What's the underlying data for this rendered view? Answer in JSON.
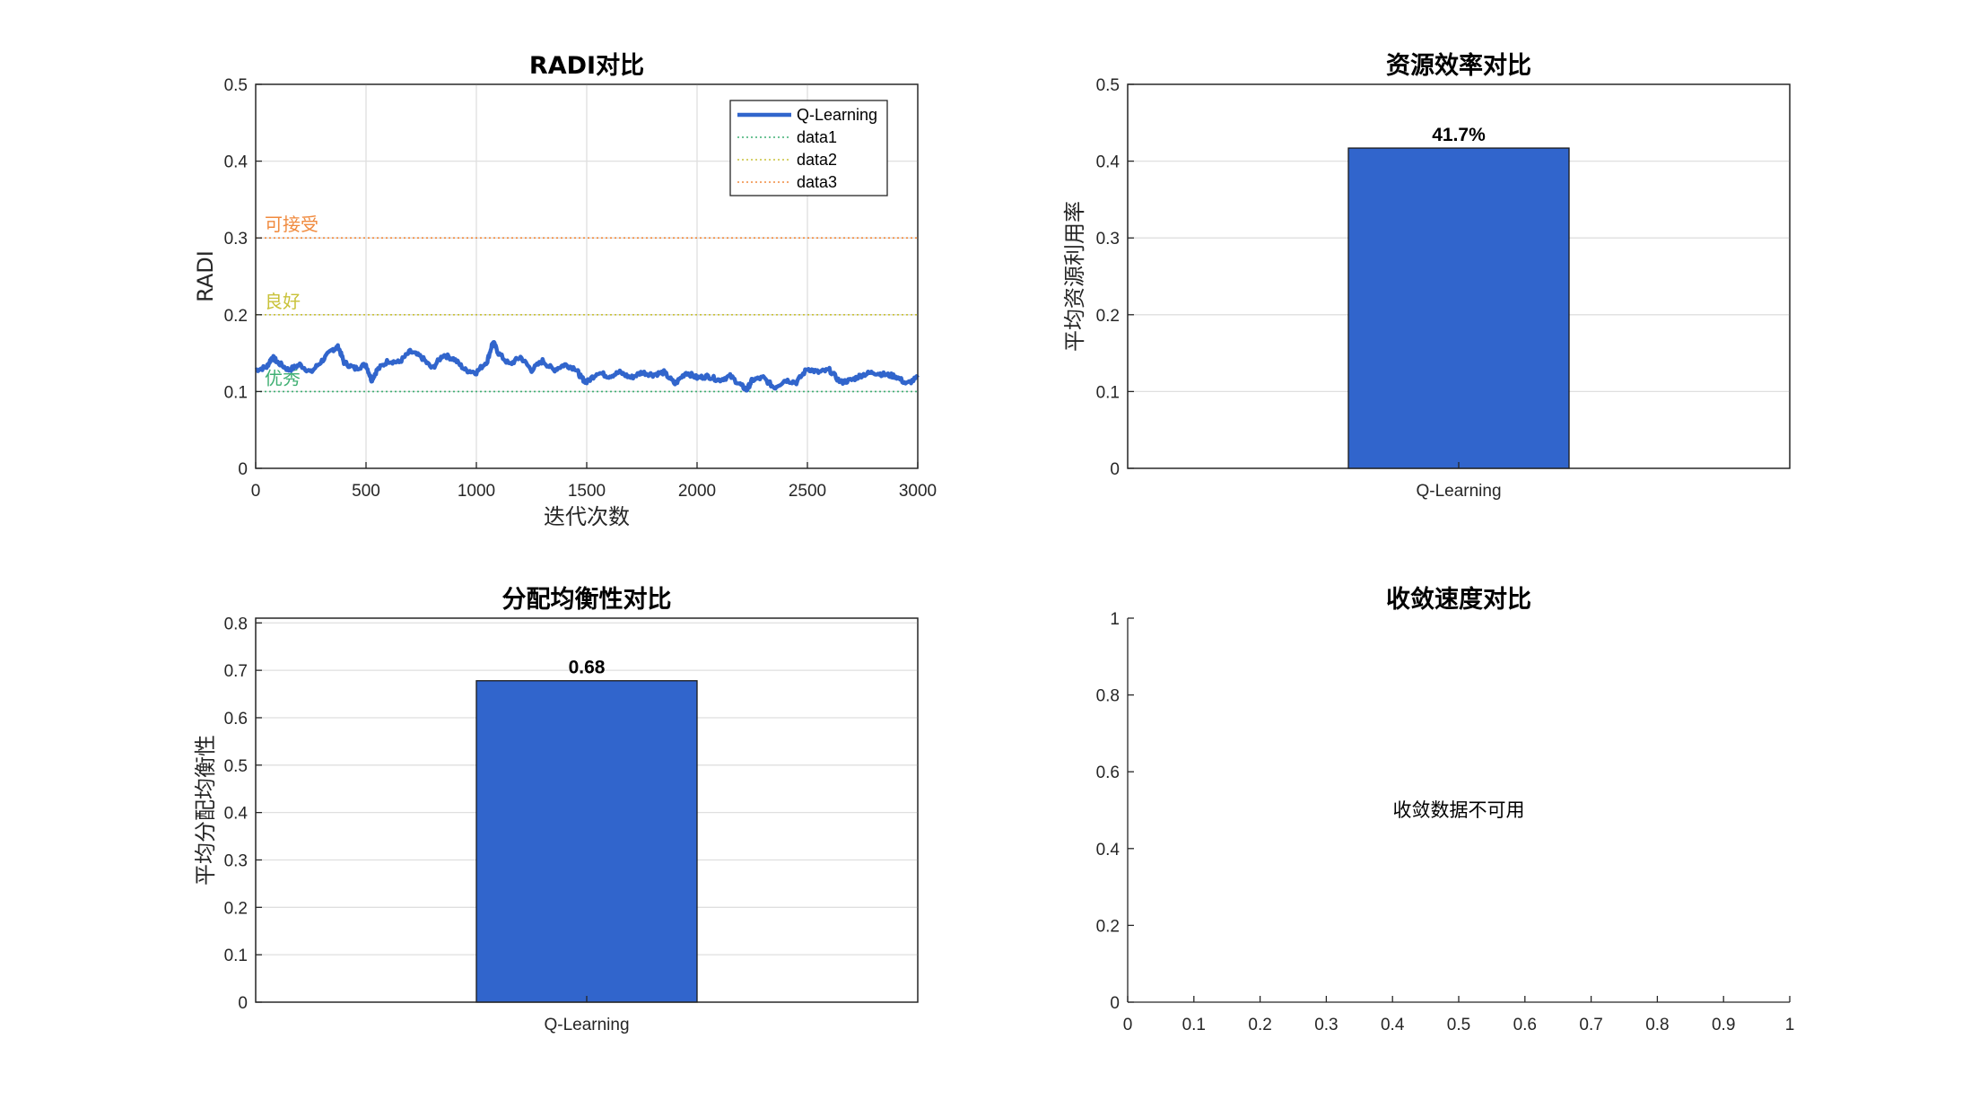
{
  "chart_data": [
    {
      "type": "line",
      "title": "RADI对比",
      "xlabel": "迭代次数",
      "ylabel": "RADI",
      "xlim": [
        0,
        3000
      ],
      "ylim": [
        0,
        0.5
      ],
      "xticks": [
        0,
        500,
        1000,
        1500,
        2000,
        2500,
        3000
      ],
      "yticks": [
        0,
        0.1,
        0.2,
        0.3,
        0.4,
        0.5
      ],
      "xtick_labels": [
        "0",
        "500",
        "1000",
        "1500",
        "2000",
        "2500",
        "3000"
      ],
      "ytick_labels": [
        "0",
        "0.1",
        "0.2",
        "0.3",
        "0.4",
        "0.5"
      ],
      "grid": true,
      "legend_position": "top-right",
      "series": [
        {
          "name": "Q-Learning",
          "color": "#3165CC",
          "style": "solid",
          "x": [
            0,
            50,
            75,
            100,
            150,
            200,
            250,
            300,
            350,
            375,
            400,
            450,
            500,
            525,
            550,
            600,
            650,
            700,
            750,
            800,
            850,
            900,
            950,
            1000,
            1050,
            1075,
            1100,
            1150,
            1200,
            1250,
            1300,
            1350,
            1400,
            1450,
            1475,
            1500,
            1550,
            1600,
            1650,
            1700,
            1750,
            1800,
            1850,
            1900,
            1950,
            2000,
            2050,
            2100,
            2150,
            2200,
            2225,
            2250,
            2300,
            2350,
            2400,
            2450,
            2500,
            2550,
            2600,
            2650,
            2700,
            2750,
            2800,
            2850,
            2900,
            2950,
            3000
          ],
          "values": [
            0.128,
            0.132,
            0.145,
            0.138,
            0.128,
            0.135,
            0.125,
            0.14,
            0.155,
            0.158,
            0.138,
            0.13,
            0.135,
            0.115,
            0.128,
            0.14,
            0.138,
            0.152,
            0.145,
            0.13,
            0.148,
            0.142,
            0.128,
            0.125,
            0.14,
            0.165,
            0.15,
            0.135,
            0.145,
            0.128,
            0.14,
            0.128,
            0.135,
            0.13,
            0.118,
            0.112,
            0.125,
            0.12,
            0.125,
            0.118,
            0.125,
            0.122,
            0.125,
            0.11,
            0.125,
            0.118,
            0.12,
            0.115,
            0.12,
            0.108,
            0.102,
            0.115,
            0.118,
            0.105,
            0.115,
            0.112,
            0.13,
            0.125,
            0.128,
            0.112,
            0.115,
            0.122,
            0.125,
            0.122,
            0.12,
            0.11,
            0.118
          ]
        },
        {
          "name": "data1",
          "color": "#3FAF73",
          "style": "dotted",
          "x": [
            0,
            3000
          ],
          "values": [
            0.1,
            0.1
          ]
        },
        {
          "name": "data2",
          "color": "#C9C23A",
          "style": "dotted",
          "x": [
            0,
            3000
          ],
          "values": [
            0.2,
            0.2
          ]
        },
        {
          "name": "data3",
          "color": "#F08A3E",
          "style": "dotted",
          "x": [
            0,
            3000
          ],
          "values": [
            0.3,
            0.3
          ]
        }
      ],
      "annotations": [
        {
          "text": "可接受",
          "y": 0.3,
          "color": "#F08A3E"
        },
        {
          "text": "良好",
          "y": 0.2,
          "color": "#C9C23A"
        },
        {
          "text": "优秀",
          "y": 0.1,
          "color": "#3FAF73"
        }
      ]
    },
    {
      "type": "bar",
      "title": "资源效率对比",
      "xlabel": "",
      "ylabel": "平均资源利用率",
      "ylim": [
        0,
        0.5
      ],
      "yticks": [
        0,
        0.1,
        0.2,
        0.3,
        0.4,
        0.5
      ],
      "ytick_labels": [
        "0",
        "0.1",
        "0.2",
        "0.3",
        "0.4",
        "0.5"
      ],
      "categories": [
        "Q-Learning"
      ],
      "values": [
        0.417
      ],
      "data_labels": [
        "41.7%"
      ],
      "color": "#3165CC",
      "grid": true
    },
    {
      "type": "bar",
      "title": "分配均衡性对比",
      "xlabel": "",
      "ylabel": "平均分配均衡性",
      "ylim": [
        0,
        0.81
      ],
      "yticks": [
        0,
        0.1,
        0.2,
        0.3,
        0.4,
        0.5,
        0.6,
        0.7,
        0.8
      ],
      "ytick_labels": [
        "0",
        "0.1",
        "0.2",
        "0.3",
        "0.4",
        "0.5",
        "0.6",
        "0.7",
        "0.8"
      ],
      "categories": [
        "Q-Learning"
      ],
      "values": [
        0.678
      ],
      "data_labels": [
        "0.68"
      ],
      "color": "#3165CC",
      "grid": true
    },
    {
      "type": "line",
      "title": "收敛速度对比",
      "xlabel": "",
      "ylabel": "",
      "xlim": [
        0,
        1
      ],
      "ylim": [
        0,
        1
      ],
      "xticks": [
        0,
        0.1,
        0.2,
        0.3,
        0.4,
        0.5,
        0.6,
        0.7,
        0.8,
        0.9,
        1
      ],
      "yticks": [
        0,
        0.2,
        0.4,
        0.6,
        0.8,
        1
      ],
      "xtick_labels": [
        "0",
        "0.1",
        "0.2",
        "0.3",
        "0.4",
        "0.5",
        "0.6",
        "0.7",
        "0.8",
        "0.9",
        "1"
      ],
      "ytick_labels": [
        "0",
        "0.2",
        "0.4",
        "0.6",
        "0.8",
        "1"
      ],
      "series": [],
      "annotations": [
        {
          "text": "收敛数据不可用",
          "x": 0.5,
          "y": 0.5
        }
      ],
      "grid": false
    }
  ]
}
